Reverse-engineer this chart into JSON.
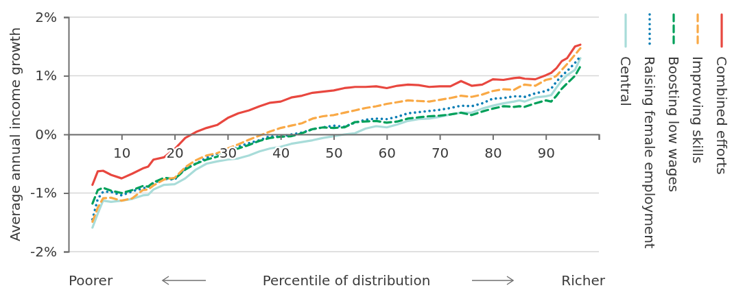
{
  "chart_data": {
    "type": "line",
    "xlabel": "Percentile of distribution",
    "ylabel": "Average annual income growth",
    "annotations": [
      "Poorer",
      "Richer"
    ],
    "x": [
      4.5,
      5.5,
      6.5,
      8,
      10,
      12,
      14,
      15,
      16,
      18,
      20,
      22,
      24,
      26,
      28,
      30,
      32,
      34,
      36,
      38,
      40,
      42,
      44,
      46,
      48,
      50,
      52,
      54,
      56,
      58,
      60,
      62,
      64,
      66,
      68,
      70,
      72,
      74,
      76,
      78,
      80,
      82,
      84,
      85,
      86,
      88,
      90,
      91,
      92,
      93,
      94,
      95.5,
      96.5
    ],
    "xlim": [
      0,
      100
    ],
    "xticks": [
      10,
      20,
      30,
      40,
      50,
      60,
      70,
      80,
      90,
      {
        "value": 100,
        "label": null
      }
    ],
    "ylim": [
      -2,
      2
    ],
    "yticks": [
      {
        "value": -2,
        "label": "-2%"
      },
      {
        "value": -1,
        "label": "-1%"
      },
      {
        "value": 0,
        "label": "0%"
      },
      {
        "value": 1,
        "label": "1%"
      },
      {
        "value": 2,
        "label": "2%"
      }
    ],
    "grid": "y",
    "legend": "right",
    "series": [
      {
        "name": "Combined efforts",
        "color": "#e8473f",
        "line_style": "solid",
        "values": [
          -0.86,
          -0.63,
          -0.62,
          -0.69,
          -0.75,
          -0.67,
          -0.58,
          -0.55,
          -0.43,
          -0.39,
          -0.25,
          -0.06,
          0.04,
          0.11,
          0.16,
          0.28,
          0.36,
          0.41,
          0.48,
          0.54,
          0.56,
          0.63,
          0.66,
          0.71,
          0.73,
          0.75,
          0.79,
          0.81,
          0.81,
          0.82,
          0.79,
          0.83,
          0.85,
          0.84,
          0.81,
          0.82,
          0.82,
          0.91,
          0.83,
          0.85,
          0.94,
          0.93,
          0.96,
          0.97,
          0.95,
          0.94,
          1.01,
          1.05,
          1.13,
          1.25,
          1.3,
          1.5,
          1.53
        ]
      },
      {
        "name": "Improving skills",
        "color": "#f9a946",
        "line_style": "dashed",
        "values": [
          -1.49,
          -1.25,
          -1.09,
          -1.08,
          -1.13,
          -1.09,
          -0.95,
          -0.94,
          -0.87,
          -0.77,
          -0.74,
          -0.56,
          -0.44,
          -0.36,
          -0.32,
          -0.24,
          -0.17,
          -0.09,
          -0.02,
          0.05,
          0.11,
          0.15,
          0.19,
          0.27,
          0.31,
          0.33,
          0.37,
          0.41,
          0.45,
          0.48,
          0.52,
          0.55,
          0.58,
          0.57,
          0.56,
          0.59,
          0.62,
          0.66,
          0.64,
          0.68,
          0.74,
          0.77,
          0.76,
          0.81,
          0.85,
          0.83,
          0.93,
          0.95,
          1.0,
          1.1,
          1.2,
          1.36,
          1.47
        ]
      },
      {
        "name": "Boosting low wages",
        "color": "#00a05a",
        "line_style": "dashed",
        "values": [
          -1.18,
          -0.95,
          -0.91,
          -0.96,
          -1.0,
          -0.95,
          -0.88,
          -0.89,
          -0.82,
          -0.74,
          -0.76,
          -0.6,
          -0.5,
          -0.43,
          -0.38,
          -0.3,
          -0.24,
          -0.18,
          -0.11,
          -0.06,
          -0.04,
          -0.03,
          0.02,
          0.09,
          0.12,
          0.11,
          0.12,
          0.21,
          0.22,
          0.23,
          0.2,
          0.22,
          0.27,
          0.29,
          0.31,
          0.32,
          0.34,
          0.37,
          0.33,
          0.39,
          0.44,
          0.48,
          0.47,
          0.48,
          0.47,
          0.53,
          0.58,
          0.56,
          0.66,
          0.78,
          0.87,
          1.0,
          1.16
        ]
      },
      {
        "name": "Raising female employment",
        "color": "#0a7eb5",
        "line_style": "dotted",
        "values": [
          -1.45,
          -1.1,
          -0.98,
          -0.98,
          -1.04,
          -0.97,
          -0.92,
          -0.9,
          -0.83,
          -0.76,
          -0.77,
          -0.58,
          -0.5,
          -0.4,
          -0.33,
          -0.29,
          -0.21,
          -0.15,
          -0.1,
          -0.03,
          -0.04,
          0.0,
          0.03,
          0.09,
          0.12,
          0.15,
          0.13,
          0.2,
          0.25,
          0.27,
          0.26,
          0.3,
          0.36,
          0.38,
          0.4,
          0.42,
          0.45,
          0.49,
          0.48,
          0.53,
          0.61,
          0.62,
          0.65,
          0.65,
          0.64,
          0.7,
          0.74,
          0.78,
          0.9,
          1.0,
          1.08,
          1.22,
          1.33
        ]
      },
      {
        "name": "Central",
        "color": "#a8dcd9",
        "line_style": "solid",
        "values": [
          -1.59,
          -1.35,
          -1.13,
          -1.15,
          -1.13,
          -1.1,
          -1.04,
          -1.03,
          -0.94,
          -0.86,
          -0.85,
          -0.75,
          -0.6,
          -0.5,
          -0.46,
          -0.43,
          -0.41,
          -0.36,
          -0.29,
          -0.24,
          -0.21,
          -0.16,
          -0.13,
          -0.1,
          -0.06,
          -0.03,
          0.0,
          0.02,
          0.1,
          0.14,
          0.12,
          0.17,
          0.23,
          0.26,
          0.27,
          0.3,
          0.34,
          0.37,
          0.37,
          0.44,
          0.49,
          0.53,
          0.56,
          0.58,
          0.56,
          0.63,
          0.65,
          0.67,
          0.8,
          0.92,
          1.01,
          1.1,
          1.3
        ]
      }
    ]
  }
}
